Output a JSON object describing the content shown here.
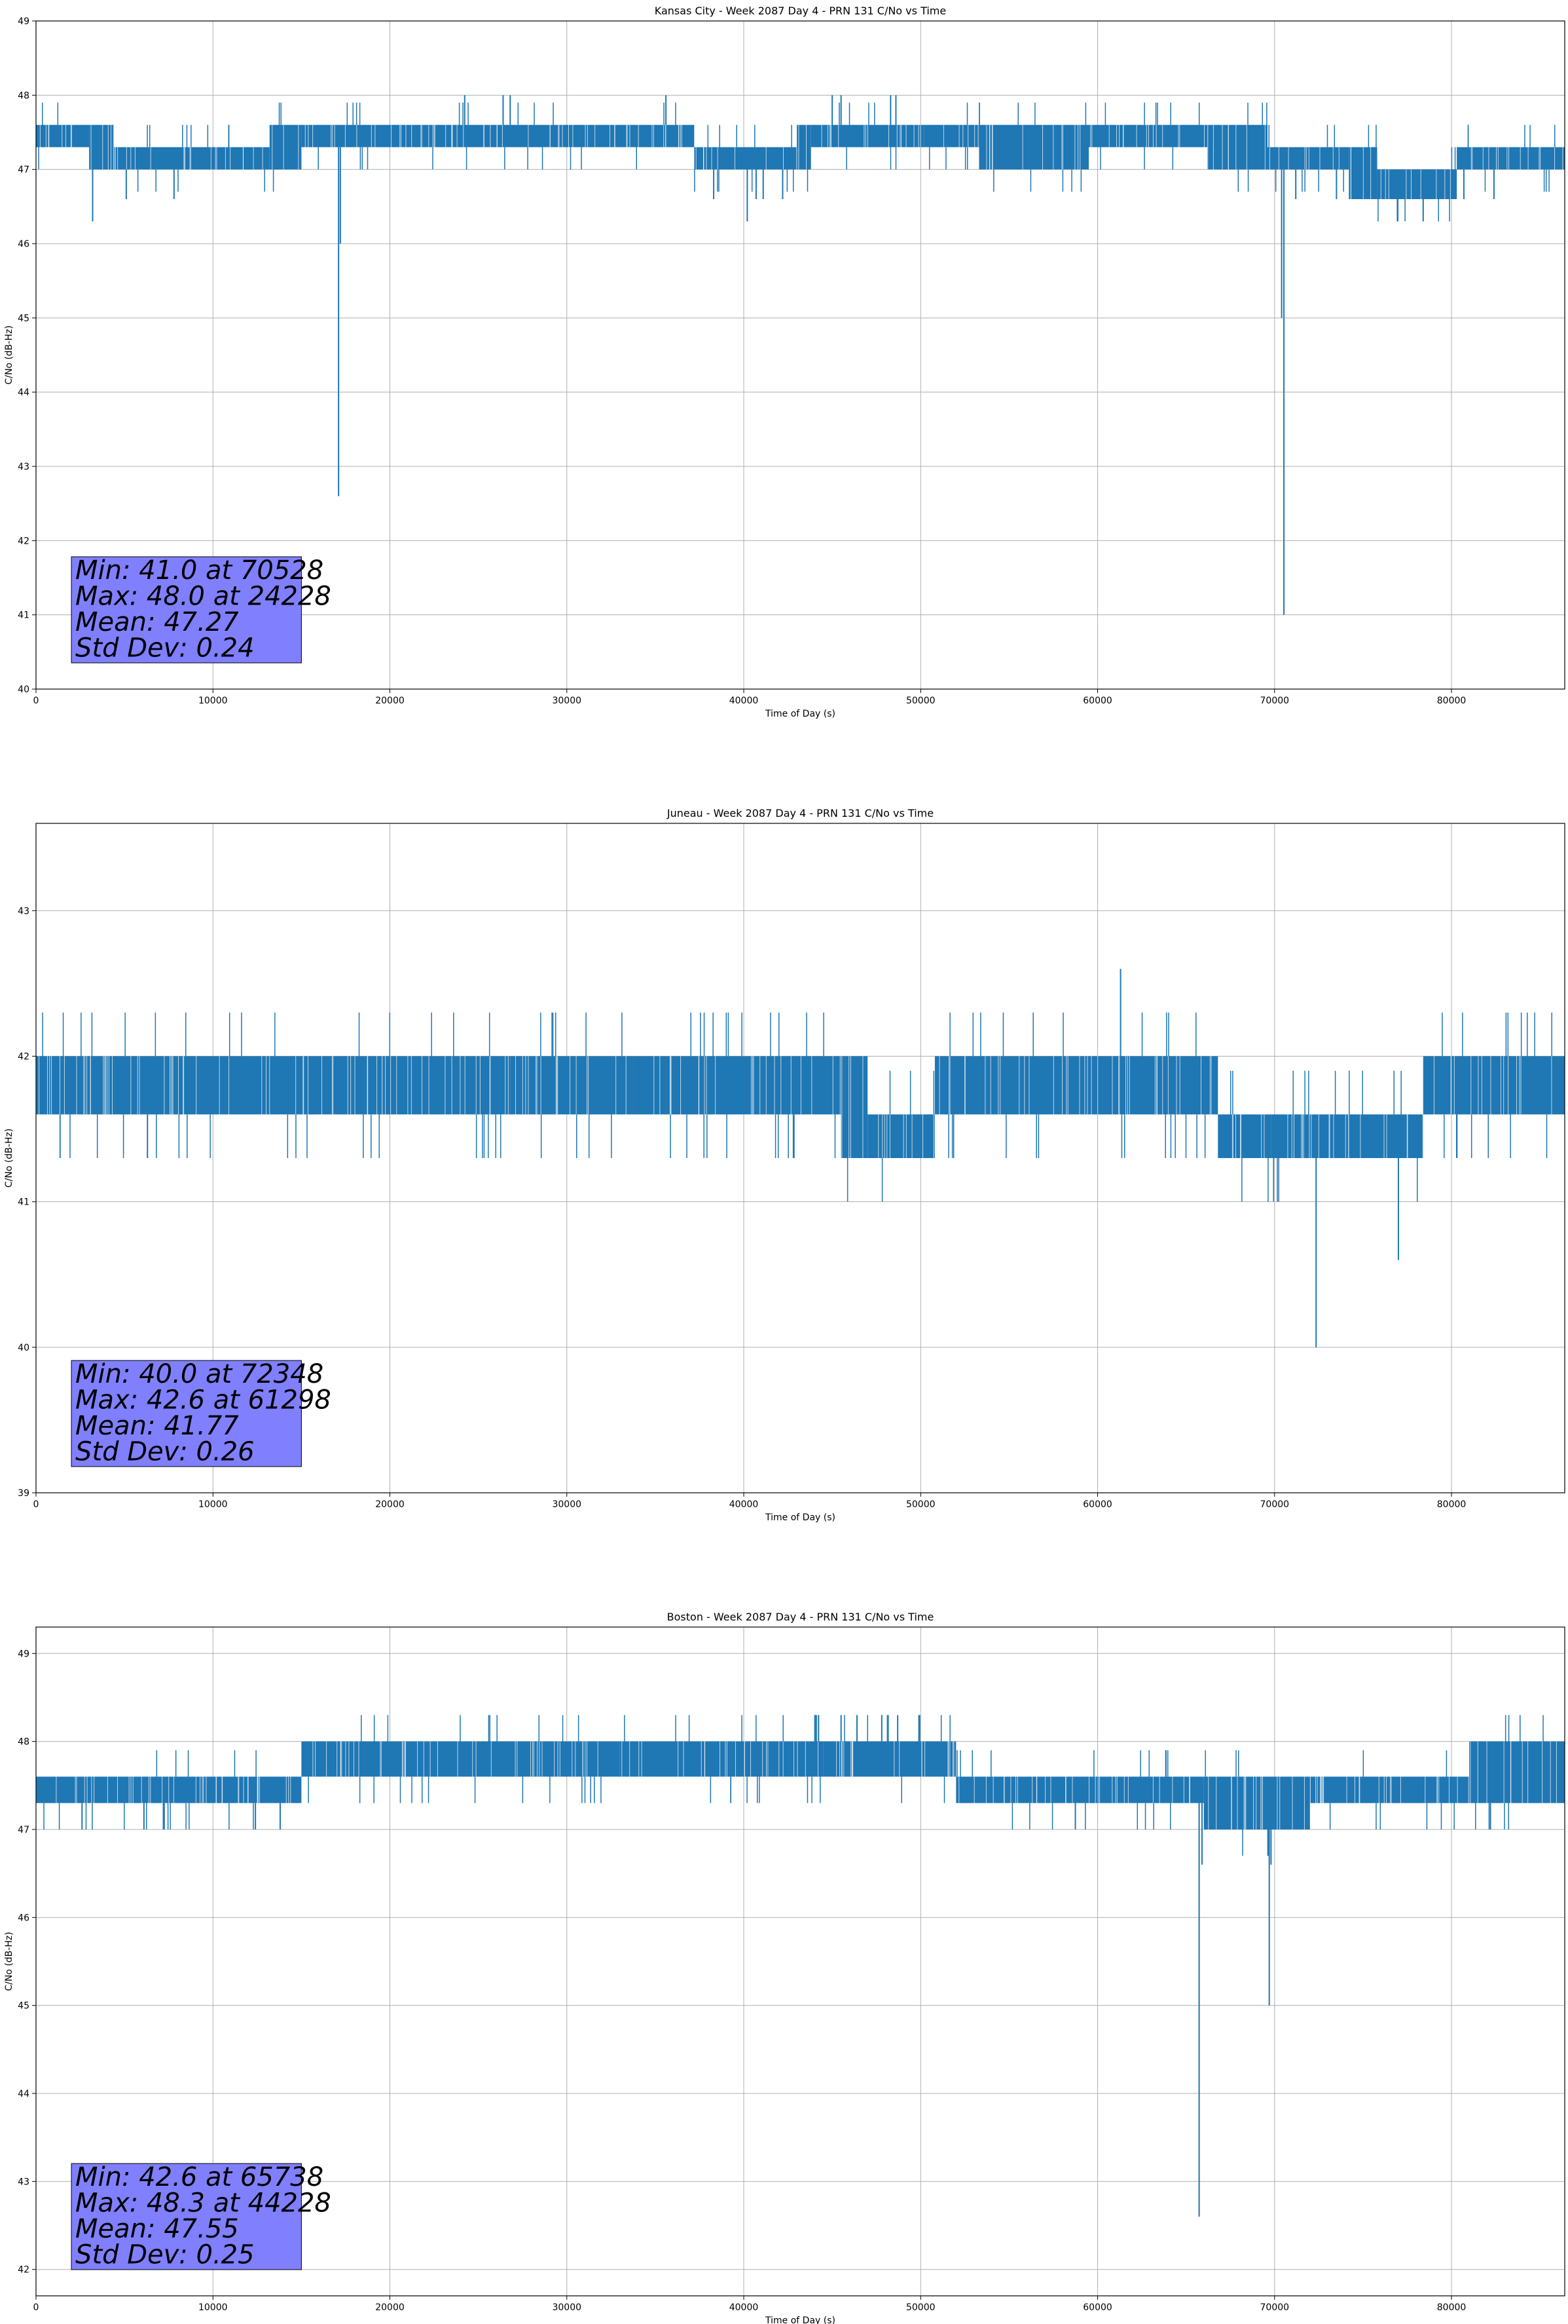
{
  "colors": {
    "series": "#1f77b4",
    "grid": "#b0b0b0",
    "axes": "#000000",
    "stats_box_fill": "#8080ff",
    "stats_box_edge": "#000000",
    "background": "#ffffff"
  },
  "chart_data": [
    {
      "type": "line",
      "title": "Kansas City - Week 2087 Day 4 - PRN 131 C/No vs Time",
      "xlabel": "Time of Day (s)",
      "ylabel": "C/No (dB-Hz)",
      "xlim": [
        0,
        86400
      ],
      "ylim": [
        40,
        49
      ],
      "xticks": [
        0,
        10000,
        20000,
        30000,
        40000,
        50000,
        60000,
        70000,
        80000
      ],
      "yticks": [
        40,
        41,
        42,
        43,
        44,
        45,
        46,
        47,
        48,
        49
      ],
      "grid": true,
      "stats_box_position": "bottom-left",
      "stats_lines": [
        "Min: 41.0 at 70528",
        "Max: 48.0 at 24228",
        "Mean: 47.27",
        "Std Dev: 0.24"
      ],
      "band_segments": [
        {
          "x": [
            0,
            3000
          ],
          "y": [
            47.3,
            47.6
          ]
        },
        {
          "x": [
            3000,
            4400
          ],
          "y": [
            47.0,
            47.6
          ]
        },
        {
          "x": [
            4400,
            13200
          ],
          "y": [
            47.0,
            47.3
          ]
        },
        {
          "x": [
            13200,
            15000
          ],
          "y": [
            47.0,
            47.6
          ]
        },
        {
          "x": [
            15000,
            22500
          ],
          "y": [
            47.3,
            47.6
          ]
        },
        {
          "x": [
            22500,
            34000
          ],
          "y": [
            47.3,
            47.6
          ]
        },
        {
          "x": [
            34000,
            37200
          ],
          "y": [
            47.3,
            47.6
          ]
        },
        {
          "x": [
            37200,
            43000
          ],
          "y": [
            47.0,
            47.3
          ]
        },
        {
          "x": [
            43000,
            43800
          ],
          "y": [
            47.0,
            47.6
          ]
        },
        {
          "x": [
            43800,
            50200
          ],
          "y": [
            47.3,
            47.6
          ]
        },
        {
          "x": [
            50200,
            53300
          ],
          "y": [
            47.3,
            47.6
          ]
        },
        {
          "x": [
            53300,
            59500
          ],
          "y": [
            47.0,
            47.6
          ]
        },
        {
          "x": [
            59500,
            66200
          ],
          "y": [
            47.3,
            47.6
          ]
        },
        {
          "x": [
            66200,
            69600
          ],
          "y": [
            47.0,
            47.6
          ]
        },
        {
          "x": [
            69600,
            74200
          ],
          "y": [
            47.0,
            47.3
          ]
        },
        {
          "x": [
            74200,
            75800
          ],
          "y": [
            46.6,
            47.3
          ]
        },
        {
          "x": [
            75800,
            80300
          ],
          "y": [
            46.6,
            47.0
          ]
        },
        {
          "x": [
            80300,
            86400
          ],
          "y": [
            47.0,
            47.3
          ]
        }
      ],
      "spikes": [
        {
          "x": 3200,
          "y": 46.3
        },
        {
          "x": 5100,
          "y": 46.6
        },
        {
          "x": 7800,
          "y": 46.6
        },
        {
          "x": 17100,
          "y": 42.6
        },
        {
          "x": 17200,
          "y": 46.0
        },
        {
          "x": 24228,
          "y": 48.0
        },
        {
          "x": 26400,
          "y": 48.0
        },
        {
          "x": 26800,
          "y": 48.0
        },
        {
          "x": 35600,
          "y": 48.0
        },
        {
          "x": 38300,
          "y": 46.6
        },
        {
          "x": 40200,
          "y": 46.3
        },
        {
          "x": 40700,
          "y": 46.6
        },
        {
          "x": 41100,
          "y": 46.6
        },
        {
          "x": 42200,
          "y": 46.6
        },
        {
          "x": 45000,
          "y": 48.0
        },
        {
          "x": 45500,
          "y": 48.0
        },
        {
          "x": 48300,
          "y": 48.0
        },
        {
          "x": 48600,
          "y": 48.0
        },
        {
          "x": 70400,
          "y": 45.0
        },
        {
          "x": 70528,
          "y": 41.0
        },
        {
          "x": 71200,
          "y": 46.6
        },
        {
          "x": 73500,
          "y": 46.6
        },
        {
          "x": 75600,
          "y": 46.6
        },
        {
          "x": 78400,
          "y": 46.3
        },
        {
          "x": 80700,
          "y": 46.6
        },
        {
          "x": 82400,
          "y": 46.6
        }
      ]
    },
    {
      "type": "line",
      "title": "Juneau - Week 2087 Day 4 - PRN 131 C/No vs Time",
      "xlabel": "Time of Day (s)",
      "ylabel": "C/No (dB-Hz)",
      "xlim": [
        0,
        86400
      ],
      "ylim": [
        39,
        43.6
      ],
      "xticks": [
        0,
        10000,
        20000,
        30000,
        40000,
        50000,
        60000,
        70000,
        80000
      ],
      "yticks": [
        39,
        40,
        41,
        42,
        43
      ],
      "grid": true,
      "stats_box_position": "bottom-left",
      "stats_lines": [
        "Min: 40.0 at 72348",
        "Max: 42.6 at 61298",
        "Mean: 41.77",
        "Std Dev: 0.26"
      ],
      "band_segments": [
        {
          "x": [
            0,
            19600
          ],
          "y": [
            41.6,
            42.0
          ]
        },
        {
          "x": [
            19600,
            26800
          ],
          "y": [
            41.6,
            42.0
          ]
        },
        {
          "x": [
            26800,
            33800
          ],
          "y": [
            41.6,
            42.0
          ]
        },
        {
          "x": [
            33800,
            45500
          ],
          "y": [
            41.6,
            42.0
          ]
        },
        {
          "x": [
            45500,
            47000
          ],
          "y": [
            41.3,
            42.0
          ]
        },
        {
          "x": [
            47000,
            50800
          ],
          "y": [
            41.3,
            41.6
          ]
        },
        {
          "x": [
            50800,
            64400
          ],
          "y": [
            41.6,
            42.0
          ]
        },
        {
          "x": [
            64400,
            66800
          ],
          "y": [
            41.6,
            42.0
          ]
        },
        {
          "x": [
            66800,
            69800
          ],
          "y": [
            41.3,
            41.6
          ]
        },
        {
          "x": [
            69800,
            78400
          ],
          "y": [
            41.3,
            41.6
          ]
        },
        {
          "x": [
            78400,
            86400
          ],
          "y": [
            41.6,
            42.0
          ]
        }
      ],
      "spikes": [
        {
          "x": 6300,
          "y": 41.3
        },
        {
          "x": 61298,
          "y": 42.6
        },
        {
          "x": 72348,
          "y": 40.0
        },
        {
          "x": 77000,
          "y": 40.6
        }
      ]
    },
    {
      "type": "line",
      "title": "Boston - Week 2087 Day 4 - PRN 131 C/No vs Time",
      "xlabel": "Time of Day (s)",
      "ylabel": "C/No (dB-Hz)",
      "xlim": [
        0,
        86400
      ],
      "ylim": [
        41.7,
        49.3
      ],
      "xticks": [
        0,
        10000,
        20000,
        30000,
        40000,
        50000,
        60000,
        70000,
        80000
      ],
      "yticks": [
        42,
        43,
        44,
        45,
        46,
        47,
        48,
        49
      ],
      "grid": true,
      "stats_box_position": "bottom-left",
      "stats_lines": [
        "Min: 42.6 at 65738",
        "Max: 48.3 at 44228",
        "Mean: 47.55",
        "Std Dev: 0.25"
      ],
      "band_segments": [
        {
          "x": [
            0,
            15000
          ],
          "y": [
            47.3,
            47.6
          ]
        },
        {
          "x": [
            15000,
            33000
          ],
          "y": [
            47.6,
            48.0
          ]
        },
        {
          "x": [
            33000,
            44500
          ],
          "y": [
            47.6,
            48.0
          ]
        },
        {
          "x": [
            44500,
            52000
          ],
          "y": [
            47.6,
            48.0
          ]
        },
        {
          "x": [
            52000,
            60000
          ],
          "y": [
            47.3,
            47.6
          ]
        },
        {
          "x": [
            60000,
            66000
          ],
          "y": [
            47.3,
            47.6
          ]
        },
        {
          "x": [
            66000,
            72000
          ],
          "y": [
            47.0,
            47.6
          ]
        },
        {
          "x": [
            72000,
            81000
          ],
          "y": [
            47.3,
            47.6
          ]
        },
        {
          "x": [
            81000,
            86400
          ],
          "y": [
            47.3,
            48.0
          ]
        }
      ],
      "spikes": [
        {
          "x": 2600,
          "y": 47.0
        },
        {
          "x": 6100,
          "y": 47.0
        },
        {
          "x": 7200,
          "y": 47.0
        },
        {
          "x": 12400,
          "y": 47.0
        },
        {
          "x": 13800,
          "y": 47.0
        },
        {
          "x": 44228,
          "y": 48.3
        },
        {
          "x": 45500,
          "y": 48.3
        },
        {
          "x": 46400,
          "y": 48.3
        },
        {
          "x": 47800,
          "y": 48.3
        },
        {
          "x": 48700,
          "y": 48.3
        },
        {
          "x": 49900,
          "y": 48.3
        },
        {
          "x": 65738,
          "y": 42.6
        },
        {
          "x": 65900,
          "y": 46.6
        },
        {
          "x": 69700,
          "y": 45.0
        },
        {
          "x": 69800,
          "y": 46.6
        },
        {
          "x": 82200,
          "y": 47.0
        }
      ]
    }
  ]
}
